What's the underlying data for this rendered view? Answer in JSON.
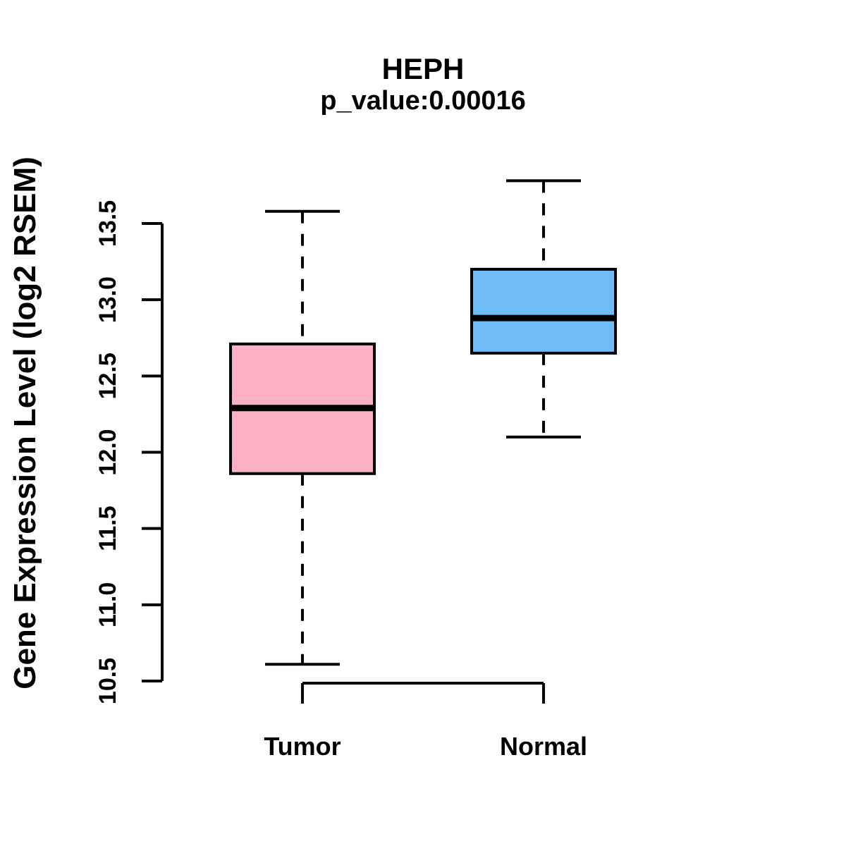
{
  "chart_data": {
    "type": "boxplot",
    "title": "HEPH",
    "subtitle": "p_value:0.00016",
    "ylabel": "Gene Expression Level (log2 RSEM)",
    "xlabel": "",
    "categories": [
      "Tumor",
      "Normal"
    ],
    "series": [
      {
        "name": "Tumor",
        "color": "#FCB0C3",
        "whisker_low": 10.61,
        "q1": 11.86,
        "median": 12.29,
        "q3": 12.71,
        "whisker_high": 13.58
      },
      {
        "name": "Normal",
        "color": "#70BCF6",
        "whisker_low": 12.1,
        "q1": 12.65,
        "median": 12.88,
        "q3": 13.2,
        "whisker_high": 13.78
      }
    ],
    "yticks": [
      10.5,
      11.0,
      11.5,
      12.0,
      12.5,
      13.0,
      13.5
    ],
    "ylim": [
      10.4,
      13.9
    ],
    "grid": false,
    "legend": "none",
    "axis_color": "#000000",
    "median_color": "#000000",
    "box_border_color": "#000000"
  }
}
